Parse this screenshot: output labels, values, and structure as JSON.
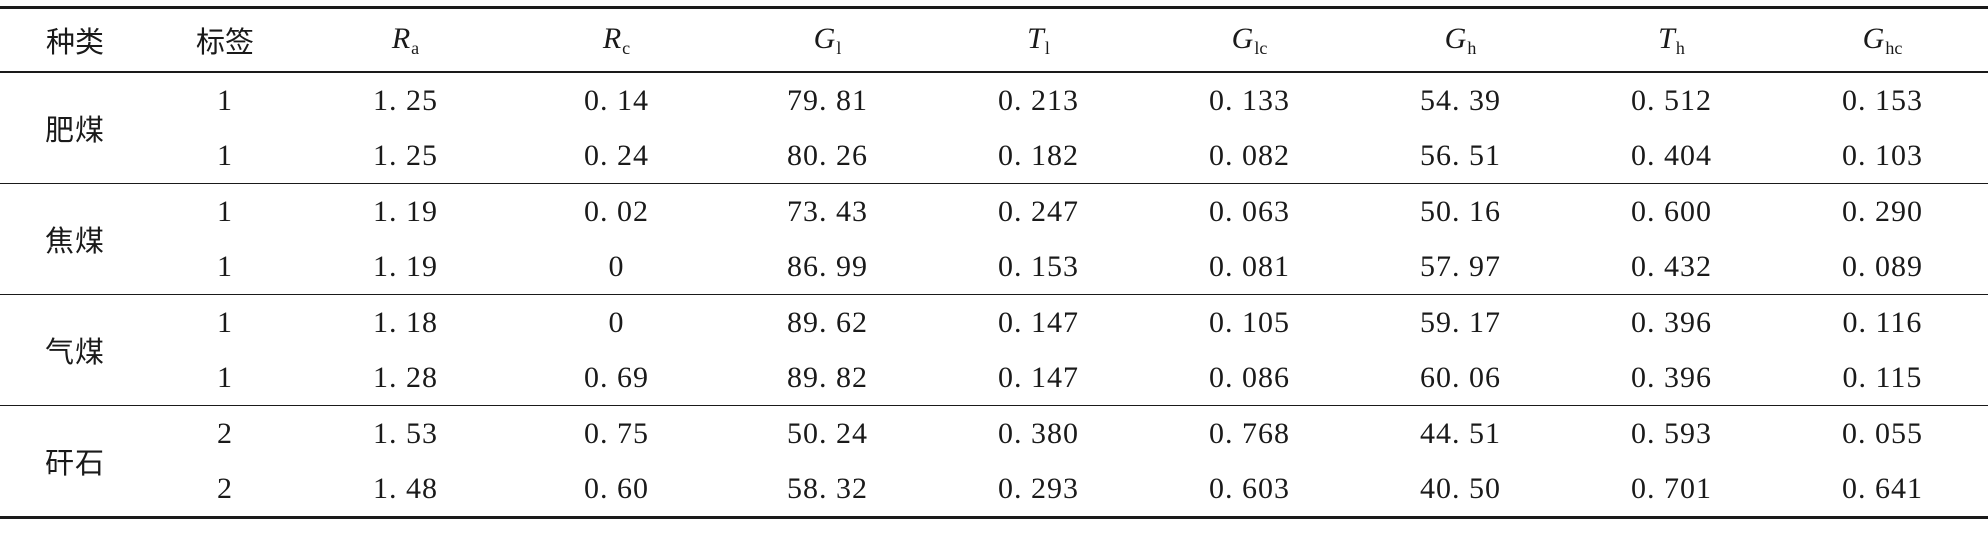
{
  "table": {
    "headers": {
      "kind": "种类",
      "label": "标签",
      "cols": [
        {
          "base": "R",
          "sub": "a"
        },
        {
          "base": "R",
          "sub": "c"
        },
        {
          "base": "G",
          "sub": "l"
        },
        {
          "base": "T",
          "sub": "l"
        },
        {
          "base": "G",
          "sub": "lc"
        },
        {
          "base": "G",
          "sub": "h"
        },
        {
          "base": "T",
          "sub": "h"
        },
        {
          "base": "G",
          "sub": "hc"
        }
      ]
    },
    "groups": [
      {
        "kind": "肥煤",
        "rows": [
          {
            "label": "1",
            "values": [
              "1. 25",
              "0. 14",
              "79. 81",
              "0. 213",
              "0. 133",
              "54. 39",
              "0. 512",
              "0. 153"
            ]
          },
          {
            "label": "1",
            "values": [
              "1. 25",
              "0. 24",
              "80. 26",
              "0. 182",
              "0. 082",
              "56. 51",
              "0. 404",
              "0. 103"
            ]
          }
        ]
      },
      {
        "kind": "焦煤",
        "rows": [
          {
            "label": "1",
            "values": [
              "1. 19",
              "0. 02",
              "73. 43",
              "0. 247",
              "0. 063",
              "50. 16",
              "0. 600",
              "0. 290"
            ]
          },
          {
            "label": "1",
            "values": [
              "1. 19",
              "0",
              "86. 99",
              "0. 153",
              "0. 081",
              "57. 97",
              "0. 432",
              "0. 089"
            ]
          }
        ]
      },
      {
        "kind": "气煤",
        "rows": [
          {
            "label": "1",
            "values": [
              "1. 18",
              "0",
              "89. 62",
              "0. 147",
              "0. 105",
              "59. 17",
              "0. 396",
              "0. 116"
            ]
          },
          {
            "label": "1",
            "values": [
              "1. 28",
              "0. 69",
              "89. 82",
              "0. 147",
              "0. 086",
              "60. 06",
              "0. 396",
              "0. 115"
            ]
          }
        ]
      },
      {
        "kind": "矸石",
        "rows": [
          {
            "label": "2",
            "values": [
              "1. 53",
              "0. 75",
              "50. 24",
              "0. 380",
              "0. 768",
              "44. 51",
              "0. 593",
              "0. 055"
            ]
          },
          {
            "label": "2",
            "values": [
              "1. 48",
              "0. 60",
              "58. 32",
              "0. 293",
              "0. 603",
              "40. 50",
              "0. 701",
              "0. 641"
            ]
          }
        ]
      }
    ]
  }
}
